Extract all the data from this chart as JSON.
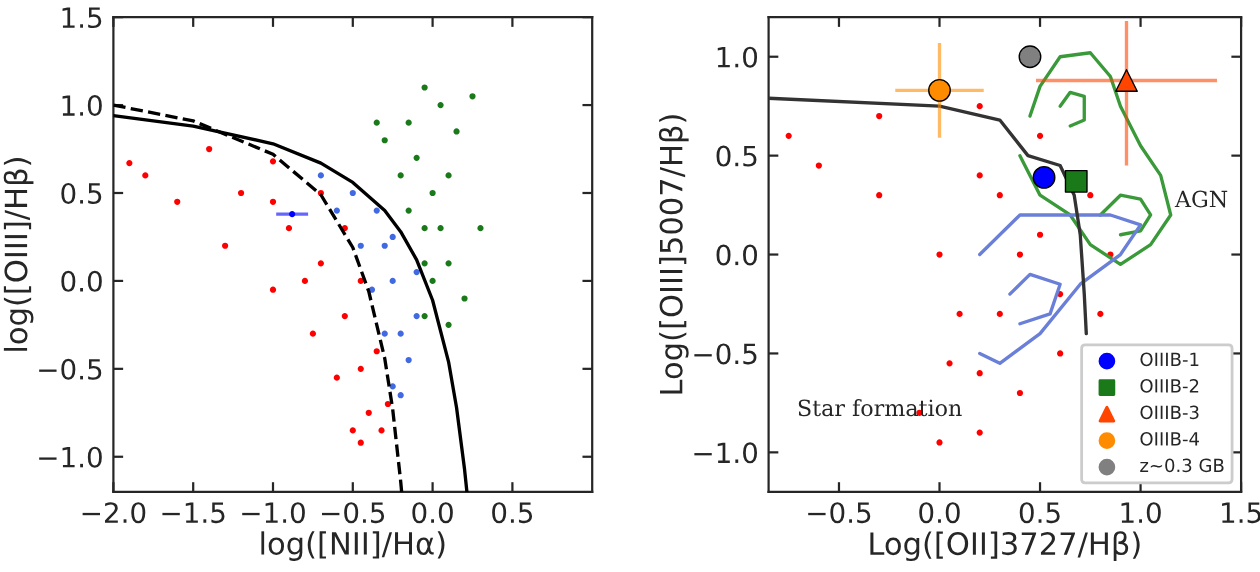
{
  "chart_data": [
    {
      "type": "scatter",
      "xlabel": "log([NII]/Hα)",
      "ylabel": "log([OIII]/Hβ)",
      "xlim": [
        -2.0,
        1.0
      ],
      "ylim": [
        -1.2,
        1.5
      ],
      "xticks": [
        {
          "value": -2.0,
          "label": "−2.0"
        },
        {
          "value": -1.5,
          "label": "−1.5"
        },
        {
          "value": -1.0,
          "label": "−1.0"
        },
        {
          "value": -0.5,
          "label": "−0.5"
        },
        {
          "value": 0.0,
          "label": "0.0"
        },
        {
          "value": 0.5,
          "label": "0.5"
        }
      ],
      "yticks": [
        {
          "value": -1.0,
          "label": "−1.0"
        },
        {
          "value": -0.5,
          "label": "−0.5"
        },
        {
          "value": 0.0,
          "label": "0.0"
        },
        {
          "value": 0.5,
          "label": "0.5"
        },
        {
          "value": 1.0,
          "label": "1.0"
        },
        {
          "value": 1.5,
          "label": "1.5"
        }
      ],
      "legend": false,
      "series": [
        {
          "color": "#ff0000",
          "marker": "circle",
          "x": [
            -1.9,
            -1.4,
            -1.0,
            -0.7,
            -0.55,
            -0.45,
            -0.35,
            -0.28,
            -0.32,
            -0.45,
            -0.5,
            -0.6,
            -0.75,
            -1.0,
            -1.3,
            -1.6,
            -1.8,
            -1.2,
            -0.9,
            -0.7,
            -0.55,
            -0.45,
            -0.4,
            -1.0,
            -0.8
          ],
          "values": [
            0.67,
            0.75,
            0.68,
            0.5,
            0.3,
            0.0,
            -0.4,
            -0.7,
            -0.85,
            -0.92,
            -0.85,
            -0.55,
            -0.3,
            -0.05,
            0.2,
            0.45,
            0.6,
            0.5,
            0.3,
            0.1,
            -0.2,
            -0.5,
            -0.75,
            0.45,
            0.0
          ]
        },
        {
          "color": "#4169e1",
          "marker": "circle",
          "x": [
            -0.7,
            -0.5,
            -0.35,
            -0.25,
            -0.1,
            -0.1,
            -0.15,
            -0.2,
            -0.25,
            -0.3,
            -0.38,
            -0.45,
            -0.6,
            -0.25,
            -0.2,
            -0.3
          ],
          "values": [
            0.6,
            0.5,
            0.4,
            0.25,
            0.05,
            -0.2,
            -0.45,
            -0.65,
            -0.6,
            -0.3,
            -0.05,
            0.2,
            0.4,
            0.0,
            -0.3,
            0.2
          ]
        },
        {
          "color": "#1a7a1a",
          "marker": "circle",
          "x": [
            -0.05,
            0.05,
            0.15,
            0.1,
            0.05,
            0.1,
            0.2,
            0.1,
            -0.05,
            -0.05,
            -0.15,
            -0.2,
            -0.15,
            -0.3,
            0.3,
            -0.1,
            0.0,
            -0.05,
            0.0,
            -0.35,
            0.25
          ],
          "values": [
            1.1,
            1.0,
            0.85,
            0.6,
            0.3,
            0.1,
            -0.1,
            -0.25,
            -0.2,
            0.1,
            0.4,
            0.6,
            0.9,
            0.8,
            0.3,
            0.7,
            0.5,
            0.3,
            0.0,
            0.9,
            1.05
          ]
        },
        {
          "type": "line",
          "color": "#000000",
          "line_style": "solid",
          "x": [
            -2.0,
            -1.5,
            -1.0,
            -0.7,
            -0.5,
            -0.3,
            -0.2,
            -0.1,
            0.0,
            0.1,
            0.15,
            0.2,
            0.215
          ],
          "values": [
            0.94,
            0.88,
            0.78,
            0.67,
            0.56,
            0.4,
            0.28,
            0.12,
            -0.11,
            -0.46,
            -0.72,
            -1.07,
            -1.2
          ]
        },
        {
          "type": "line",
          "color": "#000000",
          "line_style": "dashed",
          "x": [
            -2.0,
            -1.5,
            -1.0,
            -0.7,
            -0.5,
            -0.4,
            -0.3,
            -0.25,
            -0.2,
            -0.194
          ],
          "values": [
            1.0,
            0.91,
            0.72,
            0.49,
            0.19,
            -0.06,
            -0.44,
            -0.73,
            -1.14,
            -1.2
          ]
        },
        {
          "color": "#0000ff",
          "marker": "circle",
          "x": [
            -0.88
          ],
          "values": [
            0.38
          ],
          "xerrors": [
            0.1
          ]
        }
      ]
    },
    {
      "type": "scatter",
      "xlabel": "Log([OII]3727/Hβ)",
      "ylabel": "Log([OIII]5007/Hβ)",
      "xlim": [
        -0.85,
        1.5
      ],
      "ylim": [
        -1.2,
        1.2
      ],
      "xticks": [
        {
          "value": -0.5,
          "label": "−0.5"
        },
        {
          "value": 0.0,
          "label": "0.0"
        },
        {
          "value": 0.5,
          "label": "0.5"
        },
        {
          "value": 1.0,
          "label": "1.0"
        },
        {
          "value": 1.5,
          "label": "1.5"
        }
      ],
      "yticks": [
        {
          "value": -1.0,
          "label": "−1.0"
        },
        {
          "value": -0.5,
          "label": "−0.5"
        },
        {
          "value": 0.0,
          "label": "0.0"
        },
        {
          "value": 0.5,
          "label": "0.5"
        },
        {
          "value": 1.0,
          "label": "1.0"
        }
      ],
      "legend": "bottom right",
      "annotations": [
        "AGN",
        "Star formation"
      ],
      "series": [
        {
          "color": "#ff0000",
          "marker": "circle",
          "x": [
            -0.75,
            -0.3,
            0.2,
            0.5,
            0.75,
            0.85,
            0.8,
            0.6,
            0.4,
            0.2,
            0.0,
            -0.1,
            0.05,
            0.1,
            0.0,
            -0.3,
            -0.6,
            0.3,
            0.4,
            0.3,
            0.2,
            0.5,
            0.2,
            0.6
          ],
          "values": [
            0.6,
            0.7,
            0.75,
            0.6,
            0.3,
            0.0,
            -0.3,
            -0.5,
            -0.7,
            -0.9,
            -0.95,
            -0.8,
            -0.55,
            -0.3,
            0.0,
            0.3,
            0.45,
            0.3,
            0.0,
            -0.3,
            -0.6,
            0.1,
            0.4,
            -0.2
          ]
        },
        {
          "type": "line",
          "color": "#3a9a3a",
          "line_style": "solid",
          "x": [
            0.45,
            0.5,
            0.6,
            0.75,
            0.85,
            0.9,
            1.0,
            1.1,
            1.15,
            1.05,
            0.9,
            0.75,
            0.65,
            0.5,
            0.4
          ],
          "values": [
            0.7,
            0.85,
            1.0,
            1.02,
            0.9,
            0.75,
            0.55,
            0.4,
            0.2,
            0.05,
            -0.05,
            0.05,
            0.2,
            0.3,
            0.5
          ]
        },
        {
          "type": "line",
          "color": "#3a9a3a",
          "line_style": "solid",
          "x": [
            0.6,
            0.65,
            0.72,
            0.72,
            0.65
          ],
          "values": [
            0.75,
            0.82,
            0.8,
            0.68,
            0.65
          ]
        },
        {
          "type": "line",
          "color": "#3a9a3a",
          "line_style": "solid",
          "x": [
            0.8,
            0.9,
            1.0,
            1.05,
            1.0,
            0.9
          ],
          "values": [
            0.2,
            0.3,
            0.28,
            0.2,
            0.12,
            0.1
          ]
        },
        {
          "type": "line",
          "color": "#6a7fd8",
          "line_style": "solid",
          "x": [
            0.2,
            0.4,
            0.6,
            0.85,
            1.0,
            0.9,
            0.7,
            0.5,
            0.3,
            0.2
          ],
          "values": [
            0.0,
            0.2,
            0.2,
            0.2,
            0.15,
            0.0,
            -0.15,
            -0.4,
            -0.55,
            -0.5
          ]
        },
        {
          "type": "line",
          "color": "#6a7fd8",
          "line_style": "solid",
          "x": [
            0.35,
            0.45,
            0.6,
            0.55,
            0.4
          ],
          "values": [
            -0.2,
            -0.1,
            -0.15,
            -0.3,
            -0.35
          ]
        },
        {
          "type": "line",
          "color": "#333333",
          "line_style": "solid",
          "x": [
            -0.85,
            0.0,
            0.3,
            0.44,
            0.6,
            0.67,
            0.7,
            0.72,
            0.73
          ],
          "values": [
            0.79,
            0.75,
            0.68,
            0.5,
            0.45,
            0.3,
            0.1,
            -0.2,
            -0.4
          ]
        },
        {
          "name": "OIIIB-1",
          "color": "#0000ff",
          "marker": "circle",
          "x": [
            0.52
          ],
          "values": [
            0.39
          ]
        },
        {
          "name": "OIIIB-2",
          "color": "#1a7a1a",
          "marker": "square",
          "x": [
            0.68
          ],
          "values": [
            0.37
          ]
        },
        {
          "name": "OIIIB-3",
          "color": "#ff4500",
          "marker": "triangle",
          "x": [
            0.93
          ],
          "values": [
            0.88
          ],
          "xerrors": [
            0.45
          ],
          "errors": [
            [
              0.45,
              1.18
            ]
          ]
        },
        {
          "name": "OIIIB-4",
          "color": "#ff8c00",
          "marker": "circle",
          "x": [
            0.0
          ],
          "values": [
            0.83
          ],
          "xerrors": [
            0.22
          ],
          "errors": [
            0.24
          ]
        },
        {
          "name": "z∼0.3 GB",
          "color": "#808080",
          "marker": "circle",
          "x": [
            0.45
          ],
          "values": [
            1.0
          ]
        }
      ]
    }
  ]
}
